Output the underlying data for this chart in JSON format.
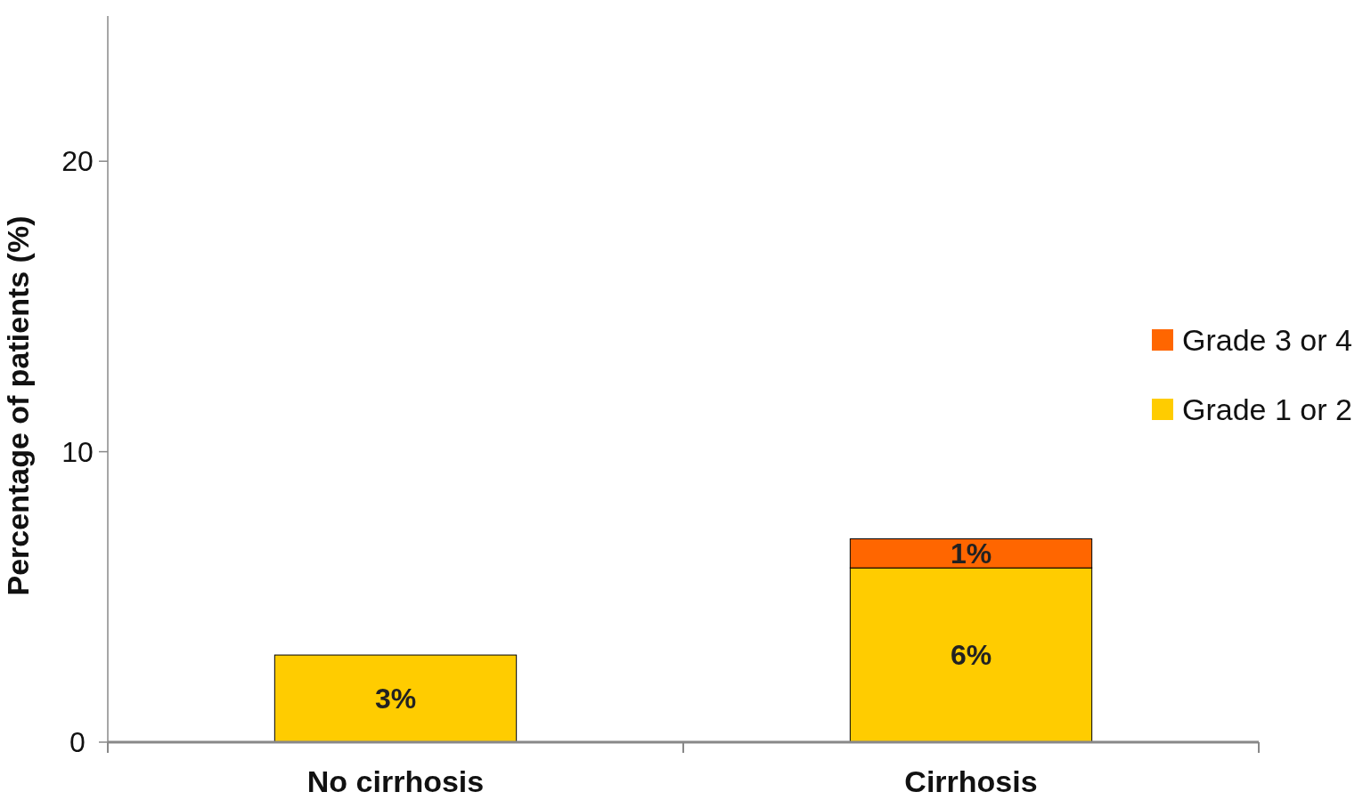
{
  "chart_data": {
    "type": "bar",
    "ylabel": "Percentage of patients (%)",
    "categories": [
      "No cirrhosis",
      "Cirrhosis"
    ],
    "stacked": true,
    "ylim": [
      0,
      25
    ],
    "yticks": [
      0,
      10,
      20
    ],
    "legend": "right",
    "grid": false,
    "series": [
      {
        "name": "Grade 1 or 2",
        "color": "#ffcc00",
        "values": [
          3,
          6
        ],
        "value_labels": [
          "3%",
          "6%"
        ]
      },
      {
        "name": "Grade 3 or 4",
        "color": "#ff6600",
        "values": [
          null,
          1
        ],
        "value_labels": [
          null,
          "1%"
        ]
      }
    ]
  }
}
